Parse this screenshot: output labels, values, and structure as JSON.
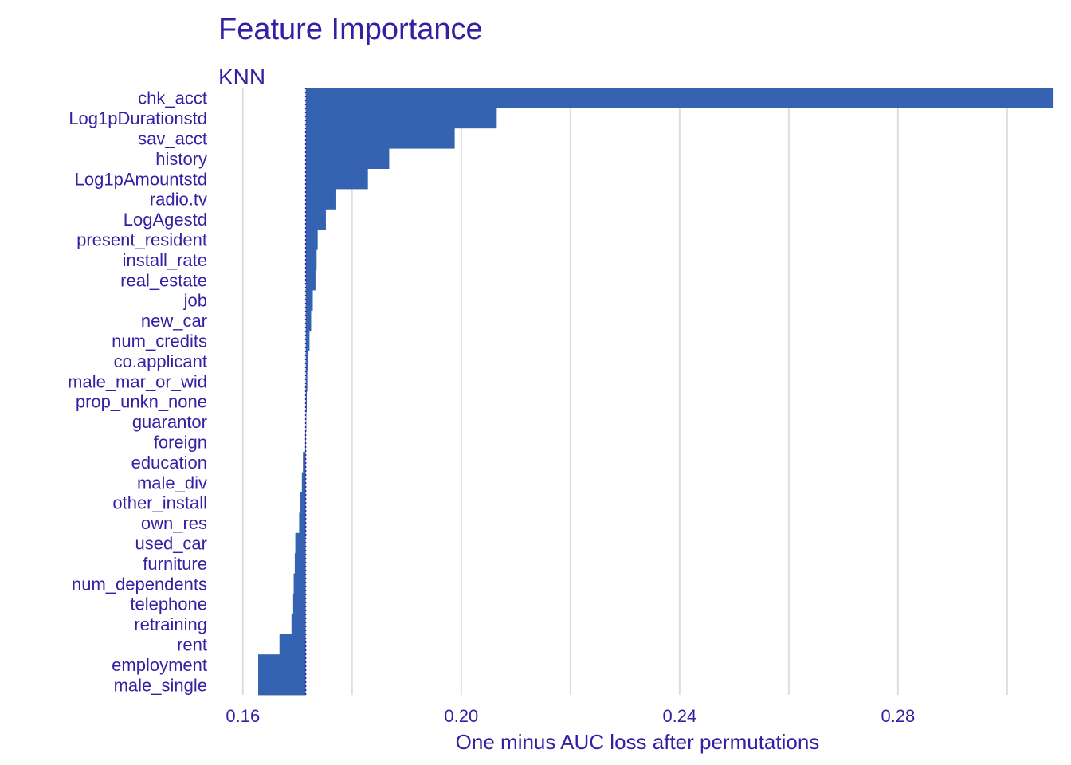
{
  "chart_data": {
    "type": "bar",
    "orientation": "horizontal",
    "title": "Feature Importance",
    "subtitle": "KNN",
    "xlabel": "One minus AUC loss after permutations",
    "baseline": 0.1715,
    "xlim": [
      0.1555,
      0.3025
    ],
    "x_ticks": [
      0.16,
      0.2,
      0.24,
      0.28
    ],
    "x_tick_labels": [
      "0.16",
      "0.20",
      "0.24",
      "0.28"
    ],
    "grid": true,
    "bar_color": "#3563B2",
    "text_color": "#371EA3",
    "grid_color": "#DEDEDE",
    "categories": [
      "chk_acct",
      "Log1pDurationstd",
      "sav_acct",
      "history",
      "Log1pAmountstd",
      "radio.tv",
      "LogAgestd",
      "present_resident",
      "install_rate",
      "real_estate",
      "job",
      "new_car",
      "num_credits",
      "co.applicant",
      "male_mar_or_wid",
      "prop_unkn_none",
      "guarantor",
      "foreign",
      "education",
      "male_div",
      "other_install",
      "own_res",
      "used_car",
      "furniture",
      "num_dependents",
      "telephone",
      "retraining",
      "rent",
      "employment",
      "male_single"
    ],
    "values": [
      0.3085,
      0.2065,
      0.1988,
      0.1868,
      0.1829,
      0.1771,
      0.1752,
      0.1737,
      0.1735,
      0.1733,
      0.1728,
      0.1725,
      0.1722,
      0.172,
      0.1718,
      0.1717,
      0.1716,
      0.1714,
      0.171,
      0.1708,
      0.1704,
      0.1703,
      0.1696,
      0.1695,
      0.1693,
      0.1692,
      0.1689,
      0.1667,
      0.1628,
      0.1628
    ]
  }
}
